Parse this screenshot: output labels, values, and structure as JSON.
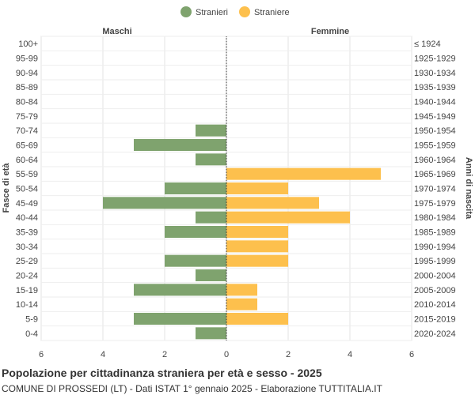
{
  "chart_data": {
    "type": "bar",
    "orientation": "horizontal-pyramid",
    "title": "Popolazione per cittadinanza straniera per età e sesso - 2025",
    "subtitle": "COMUNE DI PROSSEDI (LT) - Dati ISTAT 1° gennaio 2025 - Elaborazione TUTTITALIA.IT",
    "left_label": "Maschi",
    "right_label": "Femmine",
    "ylabel_left": "Fasce di età",
    "ylabel_right": "Anni di nascita",
    "xlim": [
      -6,
      6
    ],
    "x_ticks": [
      -6,
      -4,
      -2,
      0,
      2,
      4,
      6
    ],
    "x_tick_labels": [
      "6",
      "4",
      "2",
      "0",
      "2",
      "4",
      "6"
    ],
    "grid": true,
    "legend_position": "top-center",
    "categories": [
      "100+",
      "95-99",
      "90-94",
      "85-89",
      "80-84",
      "75-79",
      "70-74",
      "65-69",
      "60-64",
      "55-59",
      "50-54",
      "45-49",
      "40-44",
      "35-39",
      "30-34",
      "25-29",
      "20-24",
      "15-19",
      "10-14",
      "5-9",
      "0-4"
    ],
    "birth_years": [
      "≤ 1924",
      "1925-1929",
      "1930-1934",
      "1935-1939",
      "1940-1944",
      "1945-1949",
      "1950-1954",
      "1955-1959",
      "1960-1964",
      "1965-1969",
      "1970-1974",
      "1975-1979",
      "1980-1984",
      "1985-1989",
      "1990-1994",
      "1995-1999",
      "2000-2004",
      "2005-2009",
      "2010-2014",
      "2015-2019",
      "2020-2024"
    ],
    "series": [
      {
        "name": "Stranieri",
        "color": "#7fa36e",
        "side": "left",
        "values": [
          0,
          0,
          0,
          0,
          0,
          0,
          1,
          3,
          1,
          0,
          2,
          4,
          1,
          2,
          0,
          2,
          1,
          3,
          0,
          3,
          1
        ]
      },
      {
        "name": "Straniere",
        "color": "#fdc04d",
        "side": "right",
        "values": [
          0,
          0,
          0,
          0,
          0,
          0,
          0,
          0,
          0,
          5,
          2,
          3,
          4,
          2,
          2,
          2,
          0,
          1,
          1,
          2,
          0
        ]
      }
    ]
  }
}
